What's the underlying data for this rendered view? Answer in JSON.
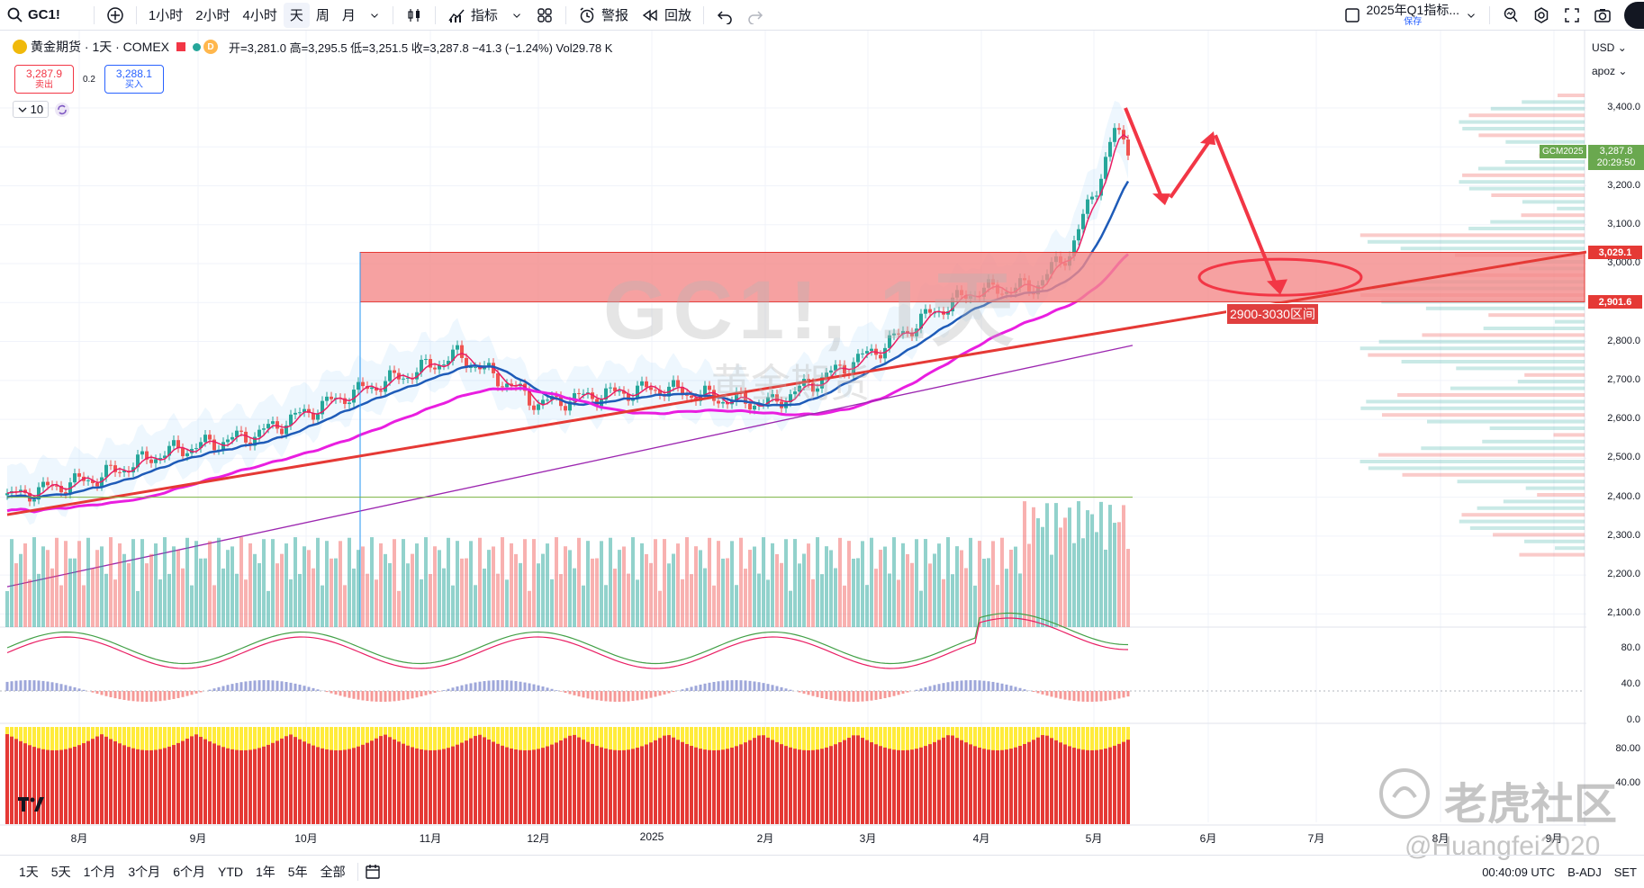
{
  "toolbar": {
    "symbol": "GC1!",
    "intervals": [
      "1小时",
      "2小时",
      "4小时",
      "天",
      "周",
      "月"
    ],
    "active_interval": "天",
    "indicators_label": "指标",
    "alert_label": "警报",
    "replay_label": "回放",
    "layout_name": "2025年Q1指标...",
    "layout_status": "保存"
  },
  "legend": {
    "title": "黄金期货 · 1天 · COMEX",
    "d_badge": "D",
    "ohlc": "开=3,281.0 高=3,295.5 低=3,251.5 收=3,287.8 −41.3 (−1.24%) Vol29.78 K",
    "indicator_count": "10"
  },
  "trade": {
    "sell_price": "3,287.9",
    "sell_label": "卖出",
    "spread": "0.2",
    "buy_price": "3,288.1",
    "buy_label": "买入"
  },
  "price_axis": {
    "currency": "USD",
    "unit": "apoz",
    "ticks": [
      "3,400.0",
      "3,200.0",
      "3,100.0",
      "3,000.0",
      "2,800.0",
      "2,700.0",
      "2,600.0",
      "2,500.0",
      "2,400.0",
      "2,300.0",
      "2,200.0",
      "2,100.0"
    ],
    "tag_upper": "3,029.1",
    "tag_lower": "2,901.6",
    "gcm_symbol": "GCM2025",
    "gcm_price": "3,287.8",
    "gcm_time": "20:29:50",
    "osc1_ticks": [
      "80.0",
      "40.0",
      "0.0"
    ],
    "osc2_ticks": [
      "80.00",
      "40.00"
    ]
  },
  "time_axis": {
    "labels": [
      "8月",
      "9月",
      "10月",
      "11月",
      "12月",
      "2025",
      "2月",
      "3月",
      "4月",
      "5月",
      "6月",
      "7月",
      "8月",
      "9月"
    ]
  },
  "annotations": {
    "zone_label": "2900-3030区间",
    "watermark_symbol": "GC1!, 1天",
    "watermark_name": "黄金期货",
    "community": "老虎社区",
    "handle": "@Huangfei2020"
  },
  "bottombar": {
    "ranges": [
      "1天",
      "5天",
      "1个月",
      "3个月",
      "6个月",
      "YTD",
      "1年",
      "5年",
      "全部"
    ],
    "clock": "00:40:09 UTC",
    "adj": "B-ADJ",
    "set": "SET"
  },
  "colors": {
    "up": "#26a69a",
    "down": "#ef5350",
    "ma_fast": "#e91e63",
    "ma_mid": "#1e5bb8",
    "ma_slow": "#e91ee0",
    "trend": "#e53935",
    "zone": "#f48a8a"
  }
}
